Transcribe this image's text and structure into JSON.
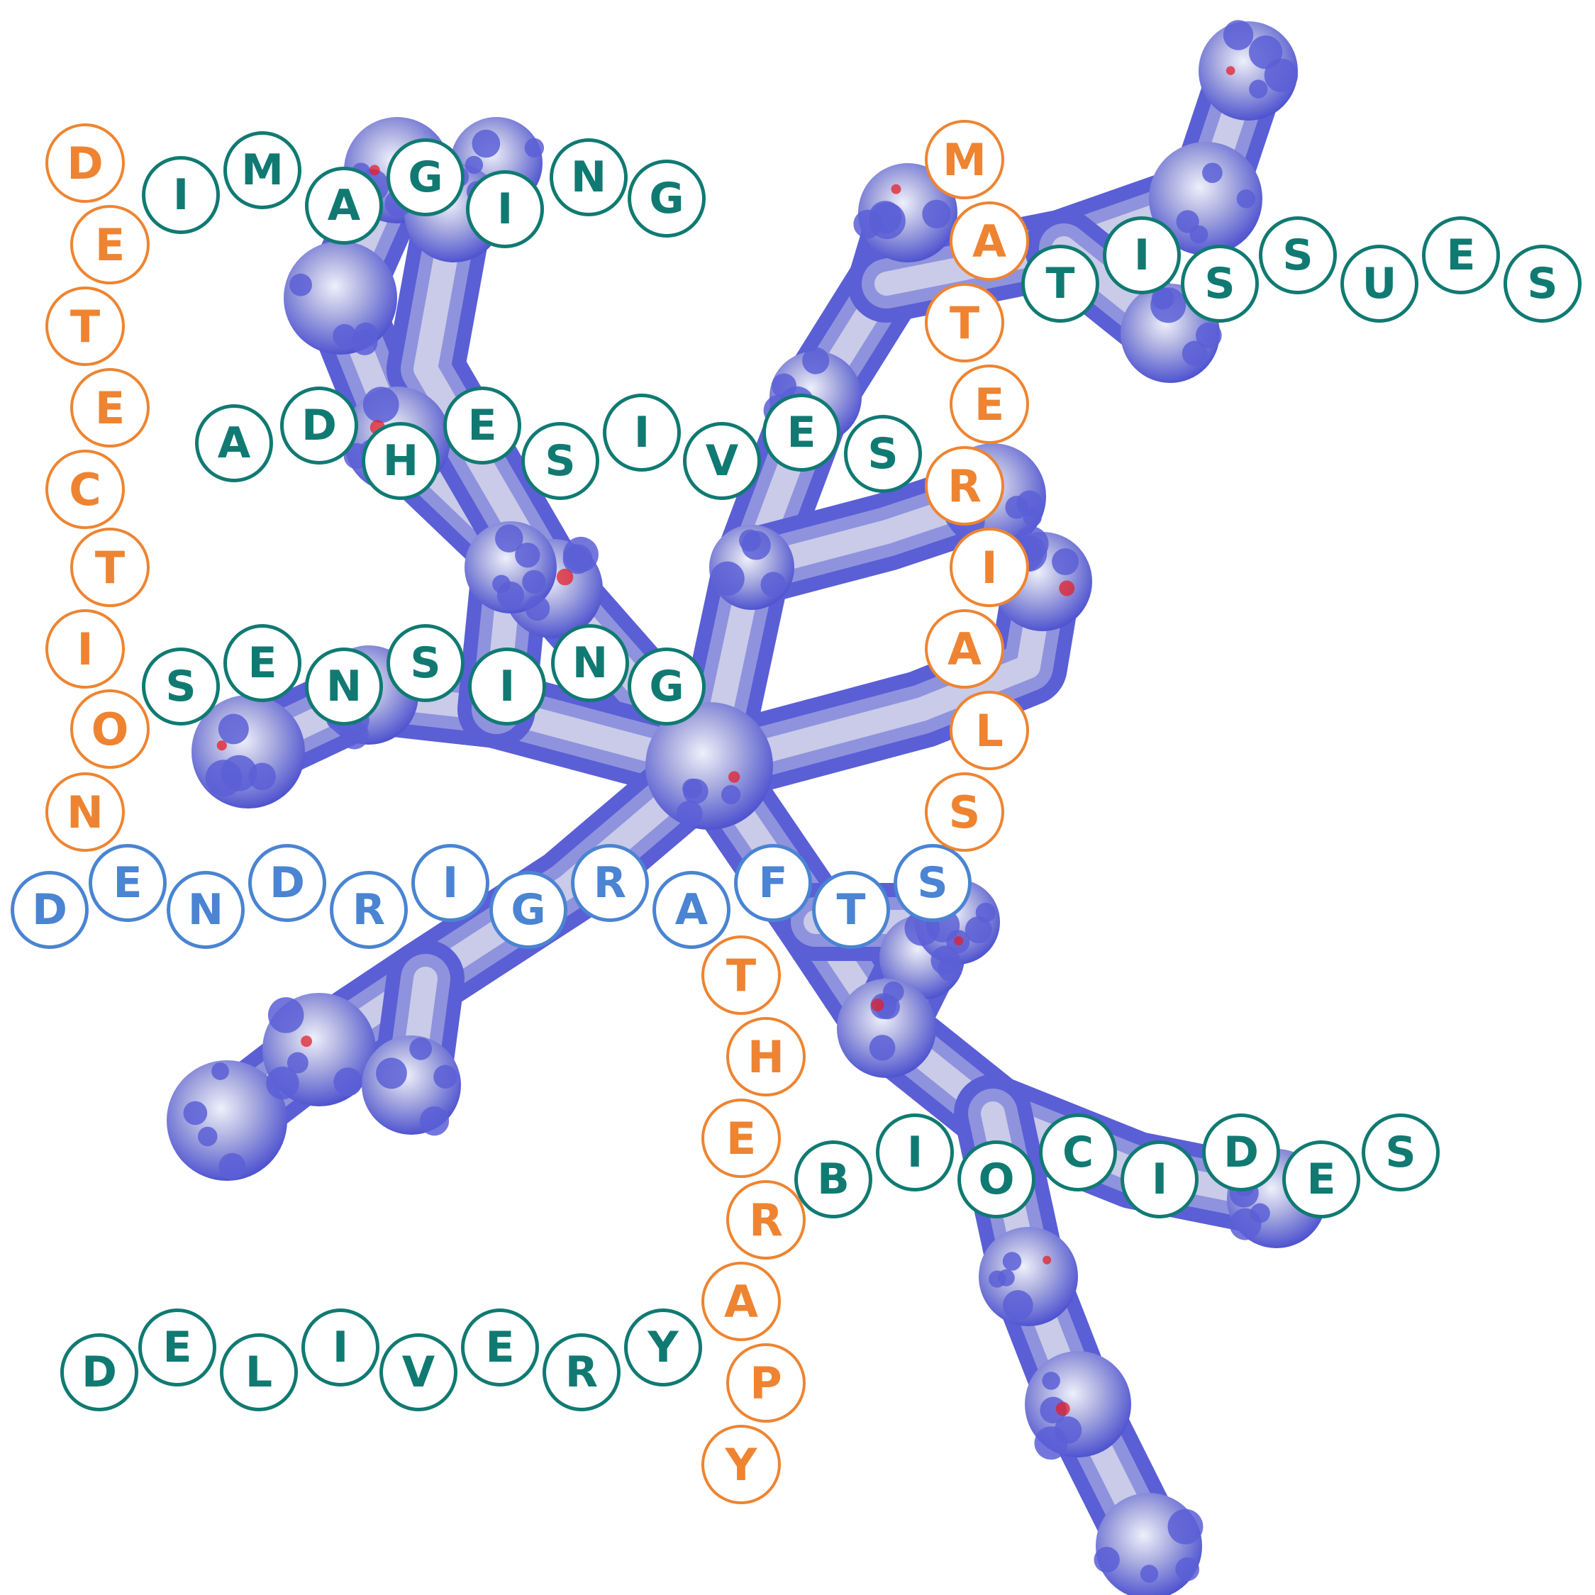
{
  "colors": {
    "teal": "#107a72",
    "orange": "#ee8431",
    "blue": "#4a84d2",
    "surface_blue": "#5a5fd6",
    "surface_light": "#c9cbe8",
    "surface_red": "#e3202a"
  },
  "words": [
    {
      "id": "imaging",
      "text": "IMAGING",
      "color": "teal"
    },
    {
      "id": "tissues",
      "text": "TISSUES",
      "color": "teal"
    },
    {
      "id": "adhesives",
      "text": "ADHESIVES",
      "color": "teal"
    },
    {
      "id": "sensing",
      "text": "SENSING",
      "color": "teal"
    },
    {
      "id": "dendrigrafts",
      "text": "DENDRIGRAFTS",
      "color": "blue"
    },
    {
      "id": "biocides",
      "text": "BIOCIDES",
      "color": "teal"
    },
    {
      "id": "delivery",
      "text": "DELIVERY",
      "color": "teal"
    },
    {
      "id": "detection",
      "text": "DETECTION",
      "color": "orange"
    },
    {
      "id": "materials",
      "text": "MATERIALS",
      "color": "orange"
    },
    {
      "id": "therapy",
      "text": "THERAPY",
      "color": "orange"
    }
  ]
}
